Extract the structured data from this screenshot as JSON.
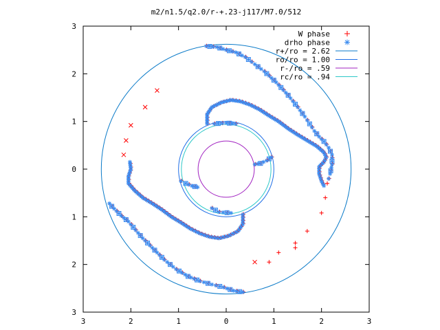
{
  "chart_data": {
    "type": "scatter",
    "title": "m2/n1.5/q2.0/r-+.23-j117/M7.0/512",
    "xlim": [
      -3,
      3
    ],
    "ylim": [
      -3,
      3
    ],
    "x_tick_labels": [
      "3",
      "2",
      "1",
      "0",
      "1",
      "2",
      "3"
    ],
    "y_tick_labels": [
      "3",
      "2",
      "1",
      "0",
      "1",
      "2",
      "3"
    ],
    "grid": false,
    "legend_position": "top-right",
    "legend": [
      {
        "label": "W phase",
        "color": "#ff0000",
        "marker": "+"
      },
      {
        "label": "drho phase",
        "color": "#3c8cf0",
        "marker": "*"
      },
      {
        "label": "r+/ro = 2.62",
        "color": "#0a7ac8",
        "marker": "line"
      },
      {
        "label": "ro/ro = 1.00",
        "color": "#1e6ee6",
        "marker": "line"
      },
      {
        "label": "r-/ro =  .59",
        "color": "#a020c0",
        "marker": "line"
      },
      {
        "label": "rc/ro =  .94",
        "color": "#2cc8c8",
        "marker": "line"
      }
    ],
    "circles": [
      {
        "r": 2.62,
        "color": "#0a7ac8"
      },
      {
        "r": 1.0,
        "color": "#1e6ee6"
      },
      {
        "r": 0.59,
        "color": "#a020c0"
      },
      {
        "r": 0.94,
        "color": "#2cc8c8"
      }
    ],
    "spiral_arms": [
      {
        "name": "outer-upper-right",
        "points": [
          [
            -0.42,
            2.58
          ],
          [
            -0.2,
            2.56
          ],
          [
            0.0,
            2.5
          ],
          [
            0.2,
            2.45
          ],
          [
            0.4,
            2.35
          ],
          [
            0.6,
            2.2
          ],
          [
            0.8,
            2.05
          ],
          [
            1.05,
            1.82
          ],
          [
            1.3,
            1.55
          ],
          [
            1.5,
            1.3
          ],
          [
            1.65,
            1.1
          ],
          [
            1.75,
            0.95
          ],
          [
            1.85,
            0.8
          ],
          [
            1.95,
            0.68
          ],
          [
            2.05,
            0.58
          ],
          [
            2.15,
            0.45
          ],
          [
            2.22,
            0.3
          ],
          [
            2.22,
            0.1
          ],
          [
            2.18,
            -0.1
          ],
          [
            2.15,
            -0.2
          ]
        ]
      },
      {
        "name": "outer-lower-left",
        "points": [
          [
            0.35,
            -2.58
          ],
          [
            0.15,
            -2.55
          ],
          [
            -0.05,
            -2.48
          ],
          [
            -0.3,
            -2.42
          ],
          [
            -0.55,
            -2.35
          ],
          [
            -0.8,
            -2.25
          ],
          [
            -1.05,
            -2.1
          ],
          [
            -1.3,
            -1.9
          ],
          [
            -1.55,
            -1.65
          ],
          [
            -1.75,
            -1.45
          ],
          [
            -1.9,
            -1.28
          ],
          [
            -2.05,
            -1.1
          ],
          [
            -2.2,
            -0.98
          ],
          [
            -2.3,
            -0.88
          ],
          [
            -2.4,
            -0.78
          ],
          [
            -2.45,
            -0.72
          ]
        ]
      },
      {
        "name": "middle-upper",
        "points": [
          [
            -0.4,
            0.95
          ],
          [
            -0.4,
            1.15
          ],
          [
            -0.3,
            1.3
          ],
          [
            -0.1,
            1.4
          ],
          [
            0.1,
            1.45
          ],
          [
            0.3,
            1.42
          ],
          [
            0.5,
            1.35
          ],
          [
            0.7,
            1.25
          ],
          [
            0.9,
            1.12
          ],
          [
            1.1,
            1.0
          ],
          [
            1.3,
            0.85
          ],
          [
            1.5,
            0.72
          ],
          [
            1.7,
            0.6
          ],
          [
            1.9,
            0.48
          ],
          [
            2.05,
            0.35
          ],
          [
            2.1,
            0.25
          ],
          [
            2.05,
            0.15
          ],
          [
            1.95,
            0.05
          ],
          [
            1.95,
            -0.1
          ],
          [
            2.0,
            -0.25
          ],
          [
            2.05,
            -0.35
          ]
        ]
      },
      {
        "name": "middle-lower",
        "points": [
          [
            0.35,
            -0.95
          ],
          [
            0.35,
            -1.15
          ],
          [
            0.25,
            -1.3
          ],
          [
            0.05,
            -1.4
          ],
          [
            -0.15,
            -1.45
          ],
          [
            -0.35,
            -1.42
          ],
          [
            -0.55,
            -1.35
          ],
          [
            -0.75,
            -1.25
          ],
          [
            -0.95,
            -1.12
          ],
          [
            -1.15,
            -1.0
          ],
          [
            -1.35,
            -0.85
          ],
          [
            -1.55,
            -0.72
          ],
          [
            -1.75,
            -0.6
          ],
          [
            -1.92,
            -0.45
          ],
          [
            -2.05,
            -0.3
          ],
          [
            -2.05,
            -0.15
          ],
          [
            -2.0,
            0.0
          ],
          [
            -2.02,
            0.15
          ]
        ]
      },
      {
        "name": "inner-right",
        "points": [
          [
            0.95,
            0.25
          ],
          [
            0.85,
            0.18
          ],
          [
            0.72,
            0.12
          ],
          [
            0.6,
            0.1
          ]
        ]
      },
      {
        "name": "inner-left",
        "points": [
          [
            -0.95,
            -0.25
          ],
          [
            -0.85,
            -0.3
          ],
          [
            -0.72,
            -0.35
          ],
          [
            -0.6,
            -0.38
          ]
        ]
      },
      {
        "name": "inner-top",
        "points": [
          [
            -0.25,
            0.95
          ],
          [
            0.0,
            0.97
          ],
          [
            0.2,
            0.95
          ]
        ]
      },
      {
        "name": "inner-bottom",
        "points": [
          [
            -0.3,
            -0.82
          ],
          [
            -0.15,
            -0.9
          ],
          [
            0.1,
            -0.92
          ]
        ]
      }
    ],
    "scatter_trail_upper": [
      [
        -1.7,
        1.3
      ],
      [
        -2.0,
        0.92
      ],
      [
        -2.1,
        0.6
      ],
      [
        -1.45,
        1.65
      ],
      [
        -2.15,
        0.3
      ],
      [
        0.6,
        -1.95
      ]
    ],
    "scatter_trail_lower": [
      [
        1.7,
        -1.3
      ],
      [
        2.0,
        -0.92
      ],
      [
        2.08,
        -0.6
      ],
      [
        1.45,
        -1.65
      ],
      [
        2.12,
        -0.3
      ],
      [
        1.45,
        -1.55
      ],
      [
        1.1,
        -1.75
      ],
      [
        0.9,
        -1.95
      ]
    ]
  }
}
